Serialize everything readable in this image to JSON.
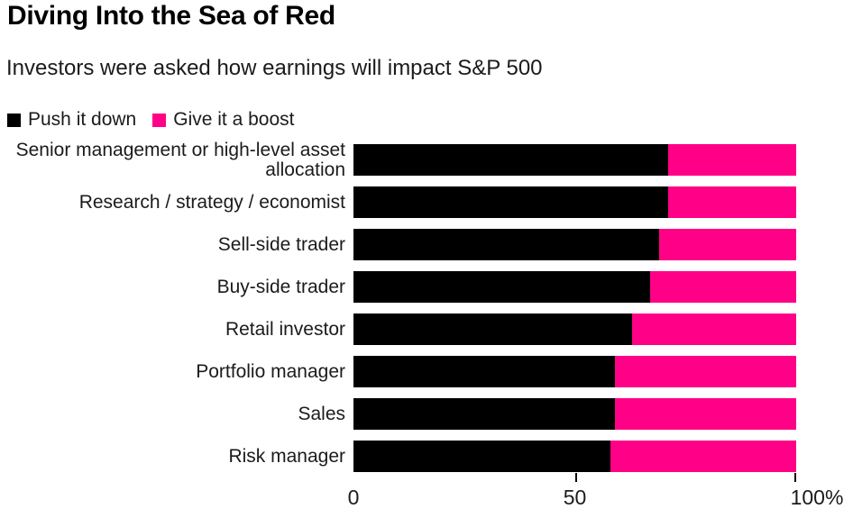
{
  "page": {
    "title": "Diving Into the Sea of Red",
    "subtitle": "Investors were asked how earnings will impact S&P 500"
  },
  "legend": {
    "items": [
      {
        "label": "Push it down",
        "color": "#000000"
      },
      {
        "label": "Give it a boost",
        "color": "#ff0087"
      }
    ]
  },
  "chart_data": {
    "type": "bar",
    "orientation": "horizontal",
    "stacked": true,
    "title": "Diving Into the Sea of Red",
    "subtitle": "Investors were asked how earnings will impact S&P 500",
    "categories": [
      "Senior management or high-level asset allocation",
      "Research / strategy / economist",
      "Sell-side trader",
      "Buy-side trader",
      "Retail investor",
      "Portfolio manager",
      "Sales",
      "Risk manager"
    ],
    "series": [
      {
        "name": "Push it down",
        "color": "#000000",
        "values": [
          71,
          71,
          69,
          67,
          63,
          59,
          59,
          58
        ]
      },
      {
        "name": "Give it a boost",
        "color": "#ff0087",
        "values": [
          29,
          29,
          31,
          33,
          37,
          41,
          41,
          42
        ]
      }
    ],
    "unit": "%",
    "xlim": [
      0,
      100
    ],
    "x_tick_labels": [
      "0",
      "50",
      "100%"
    ],
    "x_ticks_marked": [
      50,
      100
    ],
    "legend_position": "top-left",
    "grid": false
  }
}
